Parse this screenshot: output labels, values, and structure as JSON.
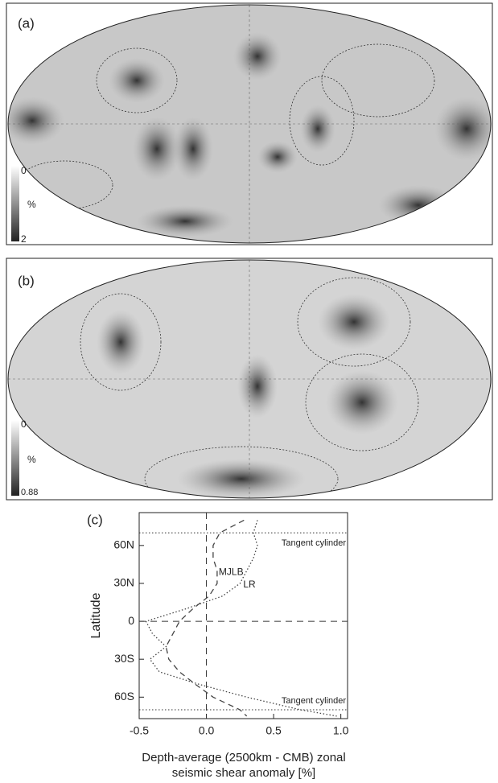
{
  "panels": [
    {
      "label": "(a)",
      "colorbar": {
        "min": 0,
        "unit": "%",
        "max": 2
      }
    },
    {
      "label": "(b)",
      "colorbar": {
        "min": 0,
        "unit": "%",
        "max": 0.88
      }
    }
  ],
  "chart_data": {
    "type": "line",
    "orientation": "vertical",
    "label": "(c)",
    "ylabel": "Latitude",
    "xlabel": [
      "Depth-average (2500km - CMB) zonal",
      "seismic shear anomaly [%]"
    ],
    "y": [
      80,
      70,
      60,
      50,
      40,
      30,
      20,
      10,
      0,
      -10,
      -20,
      -30,
      -40,
      -50,
      -60,
      -70,
      -75
    ],
    "series": [
      {
        "name": "MJLB",
        "color": "#444444",
        "dash": "7,5",
        "values": [
          0.28,
          0.1,
          0.05,
          0.05,
          0.08,
          0.08,
          0.02,
          -0.1,
          -0.2,
          -0.25,
          -0.3,
          -0.28,
          -0.2,
          -0.08,
          0.05,
          0.25,
          0.3
        ]
      },
      {
        "name": "LR",
        "color": "#444444",
        "dash": "1.5,2.5",
        "values": [
          0.38,
          0.35,
          0.38,
          0.35,
          0.3,
          0.25,
          0.12,
          -0.15,
          -0.45,
          -0.4,
          -0.3,
          -0.42,
          -0.35,
          -0.05,
          0.3,
          0.7,
          0.97
        ]
      }
    ],
    "annotations": [
      "Tangent cylinder",
      "Tangent cylinder"
    ],
    "reference_lines": [
      70,
      -70
    ],
    "xlim": [
      -0.5,
      1.05
    ],
    "ylim": [
      -77,
      86
    ],
    "xticks": [
      -0.5,
      {
        "value": 0,
        "label": "0.0"
      },
      0.5,
      {
        "value": 1,
        "label": "1.0"
      }
    ],
    "yticks": [
      {
        "value": 60,
        "label": "60N"
      },
      {
        "value": 30,
        "label": "30N"
      },
      0,
      {
        "value": -30,
        "label": "30S"
      },
      {
        "value": -60,
        "label": "60S"
      }
    ]
  }
}
